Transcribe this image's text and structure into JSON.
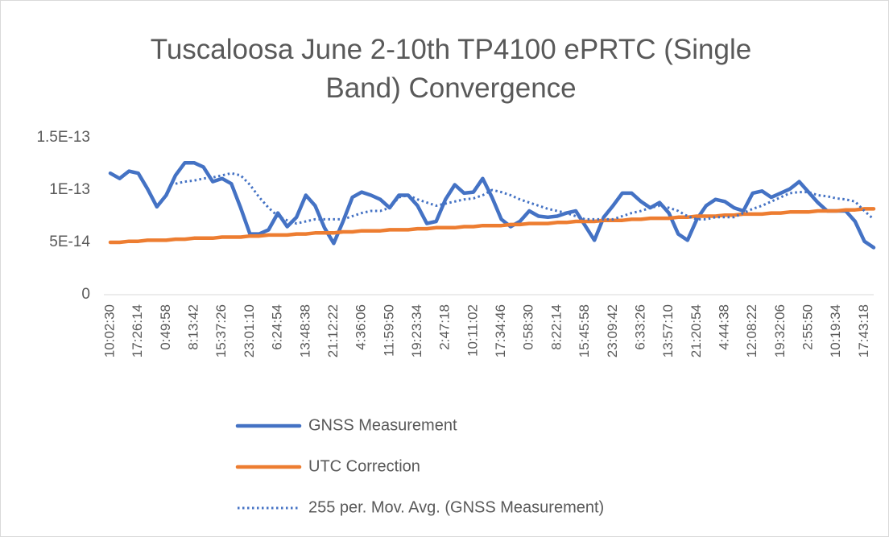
{
  "chart_data": {
    "type": "line",
    "title": "Tuscaloosa June 2-10th TP4100 ePRTC (Single Band) Convergence",
    "categories": [
      "10:02:30",
      null,
      null,
      "17:26:14",
      null,
      null,
      "0:49:58",
      null,
      null,
      "8:13:42",
      null,
      null,
      "15:37:26",
      null,
      null,
      "23:01:10",
      null,
      null,
      "6:24:54",
      null,
      null,
      "13:48:38",
      null,
      null,
      "21:12:22",
      null,
      null,
      "4:36:06",
      null,
      null,
      "11:59:50",
      null,
      null,
      "19:23:34",
      null,
      null,
      "2:47:18",
      null,
      null,
      "10:11:02",
      null,
      null,
      "17:34:46",
      null,
      null,
      "0:58:30",
      null,
      null,
      "8:22:14",
      null,
      null,
      "15:45:58",
      null,
      null,
      "23:09:42",
      null,
      null,
      "6:33:26",
      null,
      null,
      "13:57:10",
      null,
      null,
      "21:20:54",
      null,
      null,
      "4:44:38",
      null,
      null,
      "12:08:22",
      null,
      null,
      "19:32:06",
      null,
      null,
      "2:55:50",
      null,
      null,
      "10:19:34",
      null,
      null,
      "17:43:18",
      null
    ],
    "series": [
      {
        "name": "GNSS Measurement",
        "color": "#4472c4",
        "line_style": "solid",
        "values": [
          1.16e-13,
          1.11e-13,
          1.18e-13,
          1.16e-13,
          1.01e-13,
          8.4e-14,
          9.5e-14,
          1.14e-13,
          1.26e-13,
          1.26e-13,
          1.22e-13,
          1.08e-13,
          1.11e-13,
          1.06e-13,
          8.3e-14,
          5.8e-14,
          5.8e-14,
          6.2e-14,
          7.8e-14,
          6.5e-14,
          7.4e-14,
          9.5e-14,
          8.5e-14,
          6.4e-14,
          4.9e-14,
          7e-14,
          9.3e-14,
          9.8e-14,
          9.5e-14,
          9.1e-14,
          8.3e-14,
          9.5e-14,
          9.5e-14,
          8.5e-14,
          6.8e-14,
          7e-14,
          9.1e-14,
          1.05e-13,
          9.7e-14,
          9.8e-14,
          1.11e-13,
          9.3e-14,
          7.2e-14,
          6.5e-14,
          7e-14,
          8e-14,
          7.5e-14,
          7.4e-14,
          7.5e-14,
          7.8e-14,
          8e-14,
          6.6e-14,
          5.2e-14,
          7.4e-14,
          8.5e-14,
          9.7e-14,
          9.7e-14,
          8.9e-14,
          8.3e-14,
          8.8e-14,
          7.8e-14,
          5.8e-14,
          5.2e-14,
          7.2e-14,
          8.5e-14,
          9.1e-14,
          8.9e-14,
          8.3e-14,
          8e-14,
          9.7e-14,
          9.9e-14,
          9.3e-14,
          9.7e-14,
          1.01e-13,
          1.08e-13,
          9.8e-14,
          8.8e-14,
          8e-14,
          8e-14,
          8e-14,
          7e-14,
          5.1e-14,
          4.5e-14
        ]
      },
      {
        "name": "UTC Correction",
        "color": "#ed7d31",
        "line_style": "solid",
        "values": [
          5e-14,
          5e-14,
          5.1e-14,
          5.1e-14,
          5.2e-14,
          5.2e-14,
          5.2e-14,
          5.3e-14,
          5.3e-14,
          5.4e-14,
          5.4e-14,
          5.4e-14,
          5.5e-14,
          5.5e-14,
          5.5e-14,
          5.6e-14,
          5.6e-14,
          5.7e-14,
          5.7e-14,
          5.7e-14,
          5.8e-14,
          5.8e-14,
          5.9e-14,
          5.9e-14,
          5.9e-14,
          6e-14,
          6e-14,
          6.1e-14,
          6.1e-14,
          6.1e-14,
          6.2e-14,
          6.2e-14,
          6.2e-14,
          6.3e-14,
          6.3e-14,
          6.4e-14,
          6.4e-14,
          6.4e-14,
          6.5e-14,
          6.5e-14,
          6.6e-14,
          6.6e-14,
          6.6e-14,
          6.7e-14,
          6.7e-14,
          6.8e-14,
          6.8e-14,
          6.8e-14,
          6.9e-14,
          6.9e-14,
          7e-14,
          7e-14,
          7e-14,
          7.1e-14,
          7.1e-14,
          7.1e-14,
          7.2e-14,
          7.2e-14,
          7.3e-14,
          7.3e-14,
          7.3e-14,
          7.4e-14,
          7.4e-14,
          7.5e-14,
          7.5e-14,
          7.5e-14,
          7.6e-14,
          7.6e-14,
          7.7e-14,
          7.7e-14,
          7.7e-14,
          7.8e-14,
          7.8e-14,
          7.9e-14,
          7.9e-14,
          7.9e-14,
          8e-14,
          8e-14,
          8e-14,
          8.1e-14,
          8.1e-14,
          8.2e-14,
          8.2e-14
        ]
      },
      {
        "name": "255 per. Mov. Avg. (GNSS Measurement)",
        "color": "#4472c4",
        "line_style": "dotted",
        "values": [
          null,
          null,
          null,
          null,
          null,
          null,
          null,
          1.06e-13,
          1.08e-13,
          1.09e-13,
          1.11e-13,
          1.12e-13,
          1.14e-13,
          1.16e-13,
          1.14e-13,
          1.05e-13,
          9.3e-14,
          8.3e-14,
          7.5e-14,
          7.1e-14,
          6.8e-14,
          7e-14,
          7.2e-14,
          7.2e-14,
          7.2e-14,
          7.2e-14,
          7.5e-14,
          7.8e-14,
          8e-14,
          8e-14,
          8.3e-14,
          9.3e-14,
          9.5e-14,
          9.1e-14,
          8.8e-14,
          8.5e-14,
          8.7e-14,
          8.9e-14,
          9.1e-14,
          9.2e-14,
          9.5e-14,
          1e-13,
          9.8e-14,
          9.5e-14,
          9.1e-14,
          8.8e-14,
          8.5e-14,
          8.2e-14,
          8e-14,
          7.8e-14,
          7.5e-14,
          7.2e-14,
          7.2e-14,
          7.2e-14,
          7.2e-14,
          7.5e-14,
          7.8e-14,
          8e-14,
          8.3e-14,
          8.5e-14,
          8.3e-14,
          8e-14,
          7.5e-14,
          7.2e-14,
          7.2e-14,
          7.4e-14,
          7.4e-14,
          7.4e-14,
          7.8e-14,
          8.2e-14,
          8.5e-14,
          8.9e-14,
          9.3e-14,
          9.7e-14,
          9.8e-14,
          9.8e-14,
          9.5e-14,
          9.4e-14,
          9.2e-14,
          9.1e-14,
          8.9e-14,
          8e-14,
          7.2e-14
        ]
      }
    ],
    "ylim": [
      0,
      1.5e-13
    ],
    "yticks": [
      0,
      {
        "value": 5e-14,
        "label": "5E-14"
      },
      {
        "value": 1e-13,
        "label": "1E-13"
      },
      {
        "value": 1.5e-13,
        "label": "1.5E-13"
      }
    ],
    "grid": false,
    "legend": "bottom"
  }
}
